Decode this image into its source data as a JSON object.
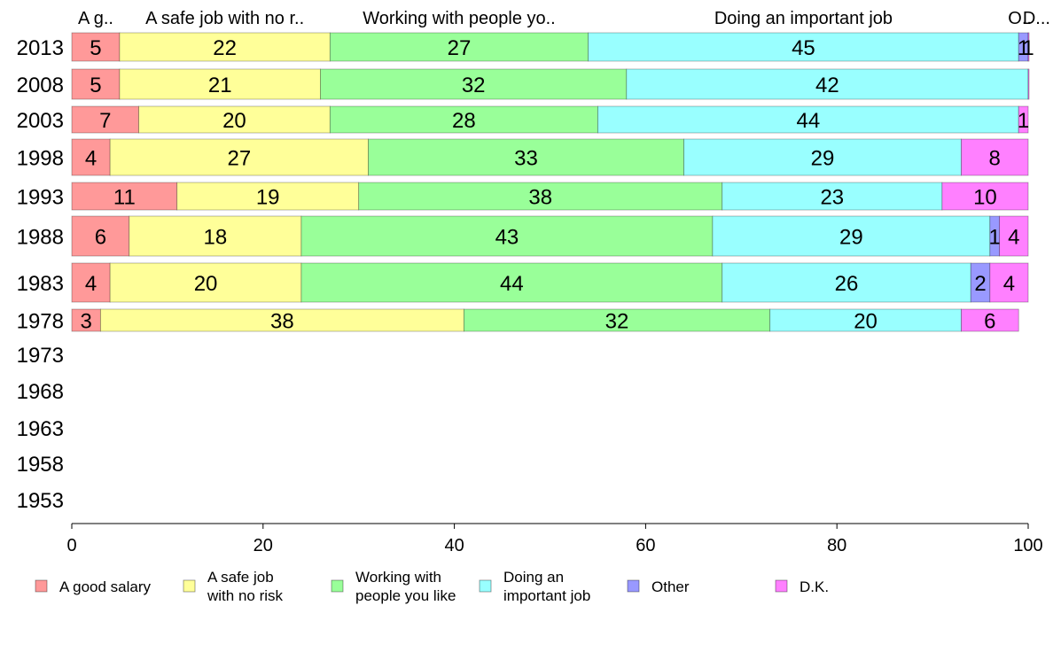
{
  "chart_data": {
    "type": "bar",
    "orientation": "horizontal",
    "stacked": true,
    "title": "",
    "xlabel": "",
    "ylabel": "",
    "xlim": [
      0,
      100
    ],
    "x_ticks": [
      0,
      20,
      40,
      60,
      80,
      100
    ],
    "categories": [
      "2013",
      "2008",
      "2003",
      "1998",
      "1993",
      "1988",
      "1983",
      "1978",
      "1973",
      "1968",
      "1963",
      "1958",
      "1953"
    ],
    "series": [
      {
        "name": "A good salary",
        "color": "#ff9999",
        "values": [
          5,
          5,
          7,
          4,
          11,
          6,
          4,
          3,
          null,
          null,
          null,
          null,
          null
        ]
      },
      {
        "name": "A safe job with no risk",
        "color": "#ffff99",
        "values": [
          22,
          21,
          20,
          27,
          19,
          18,
          20,
          38,
          null,
          null,
          null,
          null,
          null
        ]
      },
      {
        "name": "Working with people you like",
        "color": "#99ff99",
        "values": [
          27,
          32,
          28,
          33,
          38,
          43,
          44,
          32,
          null,
          null,
          null,
          null,
          null
        ]
      },
      {
        "name": "Doing an important job",
        "color": "#99ffff",
        "values": [
          45,
          42,
          44,
          29,
          23,
          29,
          26,
          20,
          null,
          null,
          null,
          null,
          null
        ]
      },
      {
        "name": "Other",
        "color": "#9999ff",
        "values": [
          1,
          0,
          0,
          0,
          0,
          1,
          2,
          0,
          null,
          null,
          null,
          null,
          null
        ]
      },
      {
        "name": "D.K.",
        "color": "#ff80ff",
        "values": [
          1,
          0.5,
          1,
          8,
          10,
          4,
          4,
          6,
          null,
          null,
          null,
          null,
          null
        ]
      }
    ],
    "top_labels": [
      "A g..",
      "A safe job with no r..",
      "Working with people yo..",
      "Doing an important job",
      "O..",
      "D..."
    ],
    "legend": {
      "placement": "bottom",
      "entries": [
        {
          "lines": [
            "A good salary"
          ]
        },
        {
          "lines": [
            "A safe job",
            "with no risk"
          ]
        },
        {
          "lines": [
            "Working with",
            "people you like"
          ]
        },
        {
          "lines": [
            "Doing an",
            "important job"
          ]
        },
        {
          "lines": [
            "Other"
          ]
        },
        {
          "lines": [
            "D.K."
          ]
        }
      ]
    },
    "grid": false
  }
}
